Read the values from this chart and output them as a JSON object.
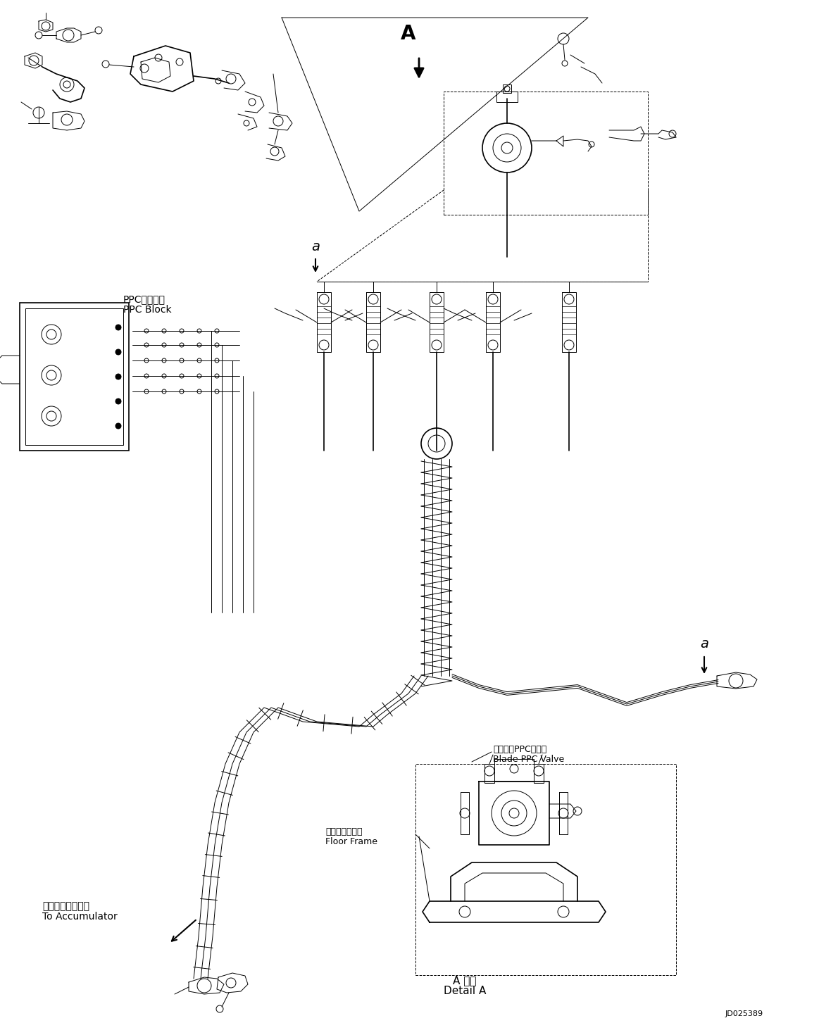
{
  "background_color": "#ffffff",
  "line_color": "#000000",
  "text_color": "#000000",
  "fig_width": 11.63,
  "fig_height": 14.53,
  "dpi": 100,
  "labels": {
    "ppc_block_jp": "PPCブロック",
    "ppc_block_en": "PPC Block",
    "accumulator_jp": "アキュムレータへ",
    "accumulator_en": "To Accumulator",
    "blade_ppc_jp": "ブレードPPCバルブ",
    "blade_ppc_en": "Blade PPC Valve",
    "floor_frame_jp": "フロアフレーム",
    "floor_frame_en": "Floor Frame",
    "detail_a_jp": "A 詳細",
    "detail_a_en": "Detail A",
    "ref_a": "A",
    "label_a_small_1": "a",
    "label_a_small_2": "a",
    "ref_number": "JD025389"
  }
}
